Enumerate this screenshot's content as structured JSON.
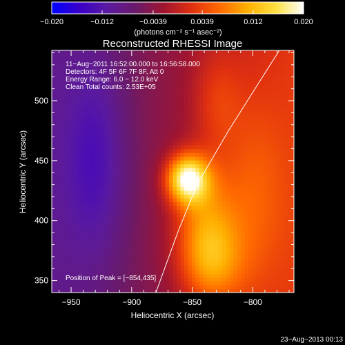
{
  "colorbar": {
    "ticks": [
      -0.02,
      -0.012,
      -0.0039,
      0.0039,
      0.012,
      0.02
    ],
    "tick_labels": [
      "−0.020",
      "−0.012",
      "−0.0039",
      "0.0039",
      "0.012",
      "0.020"
    ],
    "unit_label": "(photons cm⁻² s⁻¹ asec⁻²)",
    "range": [
      -0.02,
      0.02
    ],
    "colors": [
      "#0000ff",
      "#3a00c8",
      "#5a1aa0",
      "#6a1a6a",
      "#a01530",
      "#e03010",
      "#ff6a00",
      "#ffb000",
      "#ffe040",
      "#ffffff"
    ]
  },
  "chart_data": {
    "type": "heatmap",
    "title": "Reconstructed RHESSI Image",
    "xlabel": "Heliocentric X (arcsec)",
    "ylabel": "Heliocentric Y (arcsec)",
    "xlim": [
      -966,
      -766
    ],
    "ylim": [
      340,
      542
    ],
    "x_ticks": [
      -950,
      -900,
      -850,
      -800
    ],
    "x_tick_labels": [
      "−950",
      "−900",
      "−850",
      "−800"
    ],
    "y_ticks": [
      350,
      400,
      450,
      500
    ],
    "y_tick_labels": [
      "350",
      "400",
      "450",
      "500"
    ],
    "annotations": [
      "11−Aug−2011 16:52:00.000 to 16:56:58.000",
      "Detectors: 4F 5F 6F 7F 8F, Att 0",
      "Energy Range: 6.0 − 12.0 keV",
      "Clean     Total counts: 2.53E+05"
    ],
    "peak_label": "Position of Peak = [−854,435]",
    "peak": [
      -854,
      435
    ],
    "limb_curve": [
      [
        -880,
        340
      ],
      [
        -862,
        390
      ],
      [
        -846,
        430
      ],
      [
        -820,
        475
      ],
      [
        -795,
        515
      ],
      [
        -778,
        542
      ]
    ],
    "sources": [
      {
        "x": -854,
        "y": 435,
        "amp": 0.021,
        "sx": 12,
        "sy": 14
      },
      {
        "x": -840,
        "y": 405,
        "amp": 0.008,
        "sx": 18,
        "sy": 30
      },
      {
        "x": -835,
        "y": 365,
        "amp": 0.01,
        "sx": 18,
        "sy": 25
      },
      {
        "x": -830,
        "y": 500,
        "amp": 0.004,
        "sx": 14,
        "sy": 30
      },
      {
        "x": -800,
        "y": 420,
        "amp": 0.005,
        "sx": 20,
        "sy": 60
      }
    ],
    "background": {
      "base": -0.003,
      "x_slope": 6e-05,
      "ref_x": -860,
      "min": -0.013,
      "dip": {
        "x": -930,
        "y": 450,
        "amp": -0.006,
        "sx": 18,
        "sy": 60
      }
    }
  },
  "timestamp": "23−Aug−2013 00:13"
}
